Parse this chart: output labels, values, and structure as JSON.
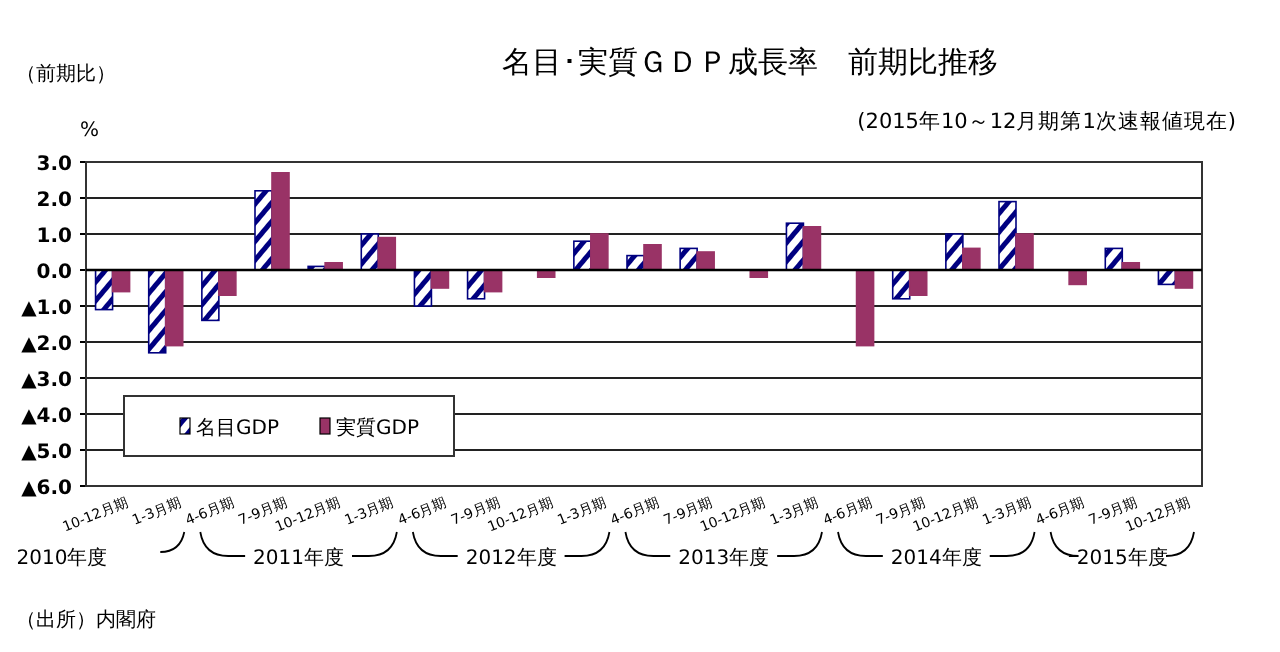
{
  "chart_data": {
    "type": "bar",
    "title": "名目･実質ＧＤＰ成長率　前期比推移",
    "subtitle": "(2015年10～12月期第1次速報値現在)",
    "ylabel": "（前期比）",
    "categories": [
      "10-12月期",
      "1-3月期",
      "4-6月期",
      "7-9月期",
      "10-12月期",
      "1-3月期",
      "4-6月期",
      "7-9月期",
      "10-12月期",
      "1-3月期",
      "4-6月期",
      "7-9月期",
      "10-12月期",
      "1-3月期",
      "4-6月期",
      "7-9月期",
      "10-12月期",
      "1-3月期",
      "4-6月期",
      "7-9月期",
      "10-12月期"
    ],
    "series": [
      {
        "name": "名目GDP",
        "color": "#000080",
        "values": [
          -1.1,
          -2.3,
          -1.4,
          2.2,
          0.1,
          1.0,
          -1.0,
          -0.8,
          0,
          0.8,
          0.4,
          0.6,
          0,
          1.3,
          0,
          -0.8,
          1.0,
          1.9,
          0,
          0.6,
          -0.4
        ]
      },
      {
        "name": "実質GDP",
        "color": "#993366",
        "values": [
          -0.6,
          -2.1,
          -0.7,
          2.7,
          0.2,
          0.9,
          -0.5,
          -0.6,
          -0.2,
          1.0,
          0.7,
          0.5,
          -0.2,
          1.2,
          -2.1,
          -0.7,
          0.6,
          1.0,
          -0.4,
          0.2,
          -0.5
        ]
      }
    ],
    "ylim": [
      -6,
      3
    ],
    "yticks": [
      {
        "value": 3,
        "label": "3.0"
      },
      {
        "value": 2,
        "label": "2.0"
      },
      {
        "value": 1,
        "label": "1.0"
      },
      {
        "value": 0,
        "label": "0.0"
      },
      {
        "value": -1,
        "label": "▲1.0"
      },
      {
        "value": -2,
        "label": "▲2.0"
      },
      {
        "value": -3,
        "label": "▲3.0"
      },
      {
        "value": -4,
        "label": "▲4.0"
      },
      {
        "value": -5,
        "label": "▲5.0"
      },
      {
        "value": -6,
        "label": "▲6.0"
      }
    ],
    "grid": "y",
    "legend": "bottom left",
    "annotations": [
      "2010年度",
      "2011年度",
      "2012年度",
      "2013年度",
      "2014年度",
      "2015年度",
      "%",
      "（出所）内閣府"
    ]
  }
}
